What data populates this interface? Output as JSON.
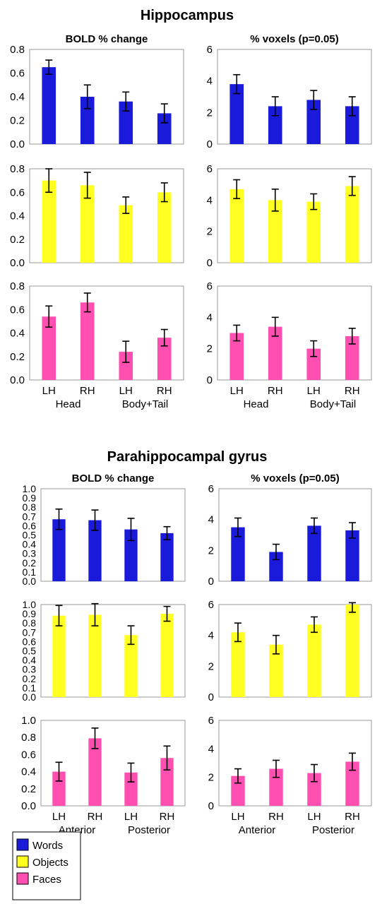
{
  "figure": {
    "section_titles": [
      "Hippocampus",
      "Parahippocampal gyrus"
    ],
    "legend": [
      {
        "label": "Words",
        "color": "#1a1adb"
      },
      {
        "label": "Objects",
        "color": "#ffff22"
      },
      {
        "label": "Faces",
        "color": "#ff4fb0"
      }
    ],
    "colors": {
      "words": "#1a1adb",
      "objects": "#ffff22",
      "faces": "#ff4fb0",
      "frame": "#999999",
      "error_bar": "#000000"
    }
  },
  "chart_data": [
    {
      "type": "bar",
      "section": "Hippocampus",
      "panel": "BOLD % change",
      "title": "BOLD % change",
      "series": "Words",
      "categories": [
        "LH",
        "RH",
        "LH",
        "RH"
      ],
      "values": [
        0.65,
        0.4,
        0.36,
        0.26
      ],
      "errors": [
        0.06,
        0.1,
        0.08,
        0.08
      ],
      "ylim": [
        0,
        0.8
      ],
      "yticks": [
        "0.0",
        "0.2",
        "0.4",
        "0.6",
        "0.8"
      ],
      "color": "#1a1adb"
    },
    {
      "type": "bar",
      "section": "Hippocampus",
      "panel": "% voxels",
      "title": "% voxels (p=0.05)",
      "series": "Words",
      "categories": [
        "LH",
        "RH",
        "LH",
        "RH"
      ],
      "values": [
        3.8,
        2.4,
        2.8,
        2.4
      ],
      "errors": [
        0.6,
        0.6,
        0.6,
        0.6
      ],
      "ylim": [
        0,
        6
      ],
      "yticks": [
        "0",
        "2",
        "4",
        "6"
      ],
      "color": "#1a1adb"
    },
    {
      "type": "bar",
      "section": "Hippocampus",
      "panel": "BOLD % change",
      "title": "",
      "series": "Objects",
      "categories": [
        "LH",
        "RH",
        "LH",
        "RH"
      ],
      "values": [
        0.7,
        0.66,
        0.49,
        0.6
      ],
      "errors": [
        0.1,
        0.11,
        0.07,
        0.08
      ],
      "ylim": [
        0,
        0.8
      ],
      "yticks": [
        "0.0",
        "0.2",
        "0.4",
        "0.6",
        "0.8"
      ],
      "color": "#ffff22"
    },
    {
      "type": "bar",
      "section": "Hippocampus",
      "panel": "% voxels",
      "title": "",
      "series": "Objects",
      "categories": [
        "LH",
        "RH",
        "LH",
        "RH"
      ],
      "values": [
        4.7,
        4.0,
        3.9,
        4.9
      ],
      "errors": [
        0.6,
        0.7,
        0.5,
        0.6
      ],
      "ylim": [
        0,
        6
      ],
      "yticks": [
        "0",
        "2",
        "4",
        "6"
      ],
      "color": "#ffff22"
    },
    {
      "type": "bar",
      "section": "Hippocampus",
      "panel": "BOLD % change",
      "title": "",
      "series": "Faces",
      "categories": [
        "LH",
        "RH",
        "LH",
        "RH"
      ],
      "values": [
        0.54,
        0.66,
        0.24,
        0.36
      ],
      "errors": [
        0.09,
        0.08,
        0.09,
        0.07
      ],
      "ylim": [
        0,
        0.8
      ],
      "yticks": [
        "0.0",
        "0.2",
        "0.4",
        "0.6",
        "0.8"
      ],
      "color": "#ff4fb0",
      "xlabels": [
        "LH",
        "RH",
        "LH",
        "RH"
      ],
      "group_labels": [
        "Head",
        "Body+Tail"
      ]
    },
    {
      "type": "bar",
      "section": "Hippocampus",
      "panel": "% voxels",
      "title": "",
      "series": "Faces",
      "categories": [
        "LH",
        "RH",
        "LH",
        "RH"
      ],
      "values": [
        3.0,
        3.4,
        2.0,
        2.8
      ],
      "errors": [
        0.5,
        0.6,
        0.5,
        0.5
      ],
      "ylim": [
        0,
        6
      ],
      "yticks": [
        "0",
        "2",
        "4",
        "6"
      ],
      "color": "#ff4fb0",
      "xlabels": [
        "LH",
        "RH",
        "LH",
        "RH"
      ],
      "group_labels": [
        "Head",
        "Body+Tail"
      ]
    },
    {
      "type": "bar",
      "section": "Parahippocampal gyrus",
      "panel": "BOLD % change",
      "title": "BOLD % change",
      "series": "Words",
      "categories": [
        "LH",
        "RH",
        "LH",
        "RH"
      ],
      "values": [
        0.67,
        0.66,
        0.56,
        0.52
      ],
      "errors": [
        0.11,
        0.11,
        0.12,
        0.07
      ],
      "ylim": [
        0,
        1.0
      ],
      "yticks": [
        "0.0",
        "0.1",
        "0.2",
        "0.3",
        "0.4",
        "0.5",
        "0.6",
        "0.7",
        "0.8",
        "0.9",
        "1.0"
      ],
      "color": "#1a1adb"
    },
    {
      "type": "bar",
      "section": "Parahippocampal gyrus",
      "panel": "% voxels",
      "title": "% voxels (p=0.05)",
      "series": "Words",
      "categories": [
        "LH",
        "RH",
        "LH",
        "RH"
      ],
      "values": [
        3.5,
        1.9,
        3.6,
        3.3
      ],
      "errors": [
        0.6,
        0.5,
        0.5,
        0.5
      ],
      "ylim": [
        0,
        6
      ],
      "yticks": [
        "0",
        "2",
        "4",
        "6"
      ],
      "color": "#1a1adb"
    },
    {
      "type": "bar",
      "section": "Parahippocampal gyrus",
      "panel": "BOLD % change",
      "title": "",
      "series": "Objects",
      "categories": [
        "LH",
        "RH",
        "LH",
        "RH"
      ],
      "values": [
        0.88,
        0.89,
        0.67,
        0.9
      ],
      "errors": [
        0.11,
        0.12,
        0.1,
        0.08
      ],
      "ylim": [
        0,
        1.0
      ],
      "yticks": [
        "0.0",
        "0.1",
        "0.2",
        "0.3",
        "0.4",
        "0.5",
        "0.6",
        "0.7",
        "0.8",
        "0.9",
        "1.0"
      ],
      "color": "#ffff22"
    },
    {
      "type": "bar",
      "section": "Parahippocampal gyrus",
      "panel": "% voxels",
      "title": "",
      "series": "Objects",
      "categories": [
        "LH",
        "RH",
        "LH",
        "RH"
      ],
      "values": [
        4.2,
        3.4,
        4.7,
        6.0
      ],
      "errors": [
        0.6,
        0.6,
        0.5,
        0.5
      ],
      "ylim": [
        0,
        6
      ],
      "yticks": [
        "0",
        "2",
        "4",
        "6"
      ],
      "color": "#ffff22"
    },
    {
      "type": "bar",
      "section": "Parahippocampal gyrus",
      "panel": "BOLD % change",
      "title": "",
      "series": "Faces",
      "categories": [
        "LH",
        "RH",
        "LH",
        "RH"
      ],
      "values": [
        0.4,
        0.79,
        0.39,
        0.56
      ],
      "errors": [
        0.11,
        0.12,
        0.11,
        0.14
      ],
      "ylim": [
        0,
        1.0
      ],
      "yticks": [
        "0.0",
        "0.2",
        "0.4",
        "0.6",
        "0.8",
        "1.0"
      ],
      "color": "#ff4fb0",
      "xlabels": [
        "LH",
        "RH",
        "LH",
        "RH"
      ],
      "group_labels": [
        "Anterior",
        "Posterior"
      ]
    },
    {
      "type": "bar",
      "section": "Parahippocampal gyrus",
      "panel": "% voxels",
      "title": "",
      "series": "Faces",
      "categories": [
        "LH",
        "RH",
        "LH",
        "RH"
      ],
      "values": [
        2.1,
        2.6,
        2.3,
        3.1
      ],
      "errors": [
        0.5,
        0.6,
        0.6,
        0.6
      ],
      "ylim": [
        0,
        6
      ],
      "yticks": [
        "0",
        "2",
        "4",
        "6"
      ],
      "color": "#ff4fb0",
      "xlabels": [
        "LH",
        "RH",
        "LH",
        "RH"
      ],
      "group_labels": [
        "Anterior",
        "Posterior"
      ]
    }
  ]
}
